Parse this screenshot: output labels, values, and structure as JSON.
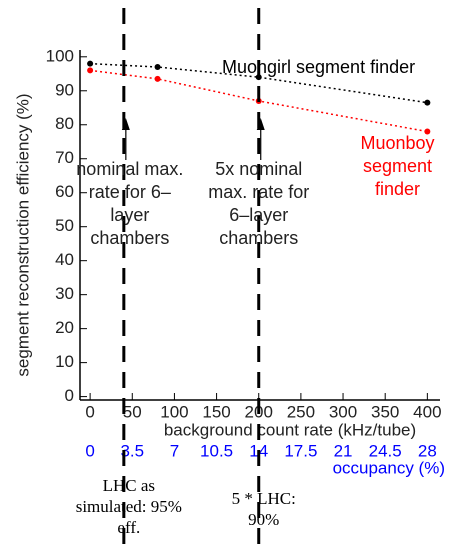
{
  "chart_data": {
    "type": "line",
    "x_label": "background count rate (kHz/tube)",
    "y_label": "segment reconstruction efficiency (%)",
    "x2_label": "occupancy (%)",
    "x": [
      0,
      80,
      200,
      400
    ],
    "series": [
      {
        "name": "Muongirl segment finder",
        "color": "#000000",
        "values": [
          98,
          97,
          94,
          86.5
        ]
      },
      {
        "name": "Muonboy segment finder",
        "color": "#ff0000",
        "values": [
          96,
          93.5,
          87,
          78
        ]
      }
    ],
    "xlim": [
      -12,
      415
    ],
    "xticks": [
      0,
      50,
      100,
      150,
      200,
      250,
      300,
      350,
      400
    ],
    "ylim": [
      -1,
      102
    ],
    "yticks": [
      0,
      10,
      20,
      30,
      40,
      50,
      60,
      70,
      80,
      90,
      100
    ],
    "x2lim": [
      -0.84,
      29.05
    ],
    "x2ticks": [
      0,
      3.5,
      7,
      10.5,
      14,
      17.5,
      21,
      24.5,
      28
    ],
    "x2color": "#0000ff",
    "annotations": [
      {
        "x": 40,
        "text": "nominal max. rate for 6–layer chambers",
        "note": "LHC as simulated: 95% eff."
      },
      {
        "x": 200,
        "text": "5x nominal max. rate for 6–layer chambers",
        "note": "5 * LHC: 90%"
      }
    ]
  }
}
